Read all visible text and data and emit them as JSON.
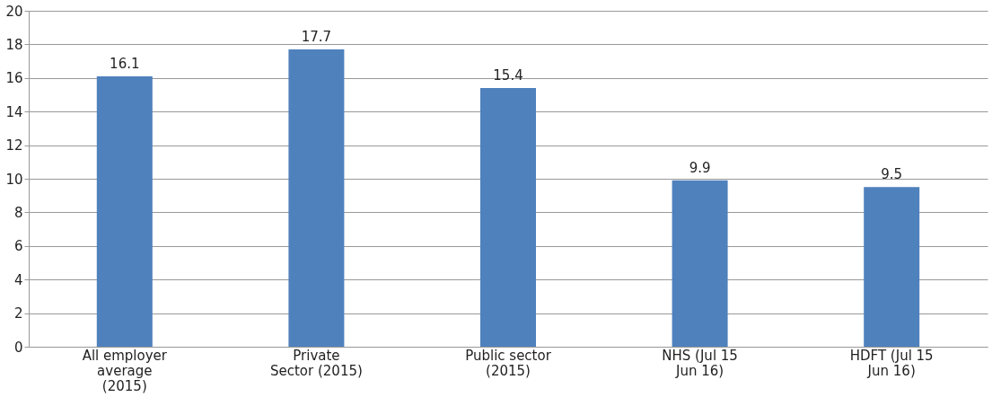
{
  "chart_data": {
    "type": "bar",
    "categories": [
      "All employer average (2015)",
      "Private Sector (2015)",
      "Public sector (2015)",
      "NHS (Jul 15 Jun 16)",
      "HDFT (Jul 15 Jun 16)"
    ],
    "values": [
      16.1,
      17.7,
      15.4,
      9.9,
      9.5
    ],
    "color": "#4f81bd",
    "ylim": [
      0,
      20
    ],
    "yticks": [
      0,
      2,
      4,
      6,
      8,
      10,
      12,
      14,
      16,
      18,
      20
    ],
    "grid": "y",
    "data_labels": true
  }
}
